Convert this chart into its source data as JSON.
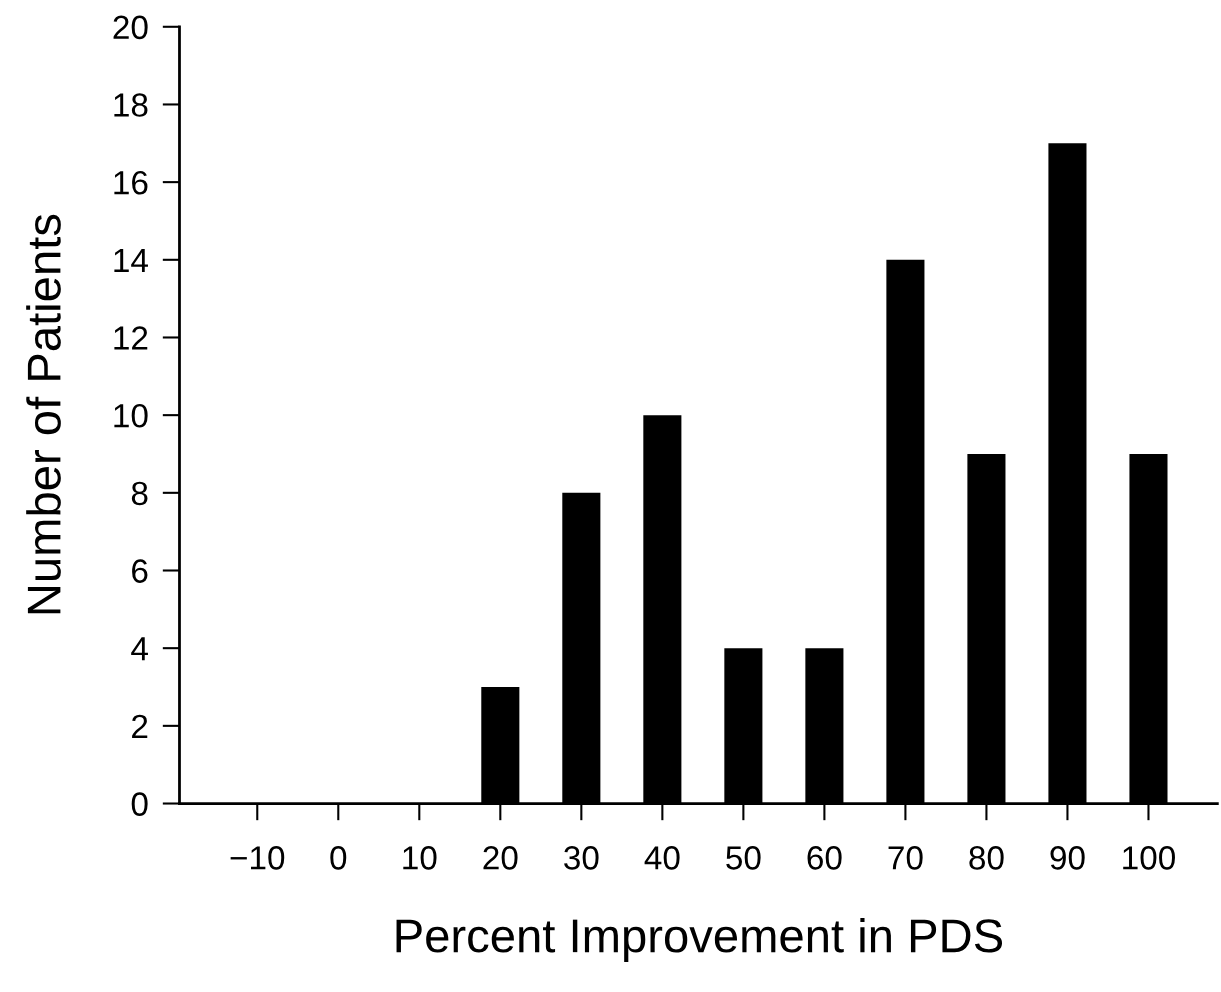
{
  "chart_data": {
    "type": "bar",
    "xlabel": "Percent Improvement in PDS",
    "ylabel": "Number of Patients",
    "categories": [
      "−10",
      "0",
      "10",
      "20",
      "30",
      "40",
      "50",
      "60",
      "70",
      "80",
      "90",
      "100"
    ],
    "values": [
      0,
      0,
      0,
      3,
      8,
      10,
      4,
      4,
      14,
      9,
      17,
      9
    ],
    "color": "#000000",
    "ylim": [
      0,
      20
    ],
    "yticks": [
      0,
      2,
      4,
      6,
      8,
      10,
      12,
      14,
      16,
      18,
      20
    ],
    "grid": false
  }
}
